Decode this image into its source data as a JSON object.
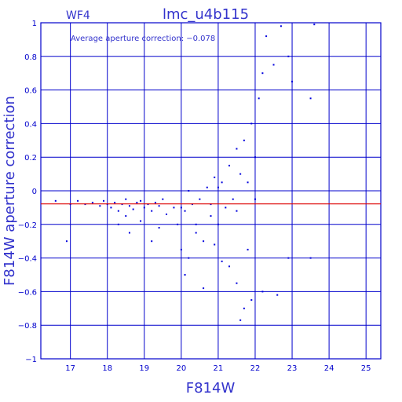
{
  "chart_data": {
    "type": "scatter",
    "panel_label": "WF4",
    "title": "lmc_u4b115",
    "xlabel": "F814W",
    "ylabel": "F814W aperture correction",
    "annotation": "Average aperture correction: −0.078",
    "xlim": [
      16.2,
      25.4
    ],
    "ylim": [
      -1,
      1
    ],
    "x_ticks": [
      17,
      18,
      19,
      20,
      21,
      22,
      23,
      24,
      25
    ],
    "x_tick_labels": [
      "17",
      "18",
      "19",
      "20",
      "21",
      "22",
      "23",
      "24",
      "25"
    ],
    "y_ticks": [
      -1,
      -0.8,
      -0.6,
      -0.4,
      -0.2,
      0,
      0.2,
      0.4,
      0.6,
      0.8,
      1
    ],
    "y_tick_labels": [
      "−1",
      "−0.8",
      "−0.6",
      "−0.4",
      "−0.2",
      "0",
      "0.2",
      "0.4",
      "0.6",
      "0.8",
      "1"
    ],
    "grid": true,
    "average_line": {
      "y": -0.078,
      "color": "#dd0000"
    },
    "colors": {
      "axes": "#0000cc",
      "points": "#0000dd",
      "text": "#3333cc",
      "average": "#dd0000"
    },
    "series": [
      {
        "points": [
          [
            16.6,
            -0.06
          ],
          [
            16.9,
            -0.3
          ],
          [
            17.0,
            -0.08
          ],
          [
            17.2,
            -0.06
          ],
          [
            17.4,
            -0.08
          ],
          [
            17.6,
            -0.07
          ],
          [
            17.8,
            -0.09
          ],
          [
            17.9,
            -0.06
          ],
          [
            18.0,
            -0.08
          ],
          [
            18.1,
            -0.1
          ],
          [
            18.2,
            -0.07
          ],
          [
            18.3,
            -0.12
          ],
          [
            18.4,
            -0.08
          ],
          [
            18.5,
            -0.05
          ],
          [
            18.6,
            -0.09
          ],
          [
            18.7,
            -0.11
          ],
          [
            18.8,
            -0.07
          ],
          [
            18.9,
            -0.06
          ],
          [
            19.0,
            -0.1
          ],
          [
            19.1,
            -0.08
          ],
          [
            19.2,
            -0.12
          ],
          [
            19.3,
            -0.07
          ],
          [
            19.4,
            -0.09
          ],
          [
            19.5,
            -0.05
          ],
          [
            18.3,
            -0.2
          ],
          [
            18.5,
            -0.15
          ],
          [
            18.6,
            -0.25
          ],
          [
            18.9,
            -0.18
          ],
          [
            19.2,
            -0.3
          ],
          [
            19.4,
            -0.22
          ],
          [
            19.6,
            -0.14
          ],
          [
            19.8,
            -0.1
          ],
          [
            19.9,
            -0.2
          ],
          [
            20.0,
            -0.35
          ],
          [
            20.1,
            -0.12
          ],
          [
            20.2,
            -0.4
          ],
          [
            20.3,
            -0.08
          ],
          [
            20.4,
            -0.25
          ],
          [
            20.5,
            -0.05
          ],
          [
            20.6,
            -0.3
          ],
          [
            20.7,
            0.02
          ],
          [
            20.8,
            -0.15
          ],
          [
            20.9,
            0.08
          ],
          [
            21.0,
            -0.2
          ],
          [
            21.1,
            0.05
          ],
          [
            21.2,
            -0.1
          ],
          [
            21.3,
            0.15
          ],
          [
            21.4,
            -0.05
          ],
          [
            21.5,
            0.25
          ],
          [
            21.6,
            0.1
          ],
          [
            21.7,
            0.3
          ],
          [
            21.8,
            0.05
          ],
          [
            21.9,
            0.4
          ],
          [
            22.0,
            0.2
          ],
          [
            22.1,
            0.55
          ],
          [
            22.2,
            0.7
          ],
          [
            22.3,
            0.92
          ],
          [
            22.5,
            0.75
          ],
          [
            22.7,
            0.98
          ],
          [
            22.9,
            0.8
          ],
          [
            23.0,
            0.65
          ],
          [
            23.5,
            0.55
          ],
          [
            23.6,
            0.99
          ],
          [
            20.1,
            -0.5
          ],
          [
            20.6,
            -0.58
          ],
          [
            21.3,
            -0.45
          ],
          [
            21.5,
            -0.55
          ],
          [
            21.7,
            -0.7
          ],
          [
            21.9,
            -0.65
          ],
          [
            21.6,
            -0.77
          ],
          [
            22.2,
            -0.6
          ],
          [
            22.6,
            -0.62
          ],
          [
            22.9,
            -0.4
          ],
          [
            23.5,
            -0.4
          ],
          [
            20.4,
            -0.2
          ],
          [
            20.9,
            -0.32
          ],
          [
            21.1,
            -0.42
          ],
          [
            21.8,
            -0.35
          ],
          [
            20.0,
            -0.1
          ],
          [
            20.2,
            0.0
          ],
          [
            20.8,
            -0.08
          ],
          [
            21.0,
            0.02
          ],
          [
            21.5,
            -0.12
          ],
          [
            22.0,
            -0.05
          ]
        ]
      }
    ]
  }
}
